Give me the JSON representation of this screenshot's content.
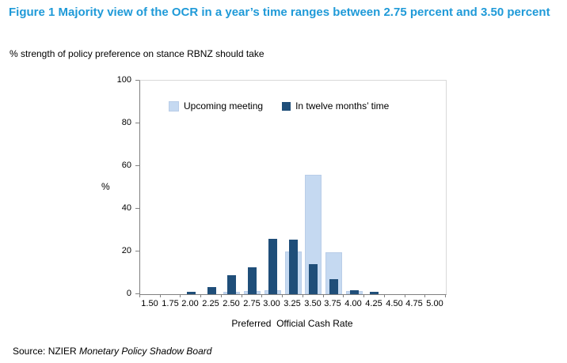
{
  "figure": {
    "source": {
      "prefix": "Source: NZIER ",
      "publication": "Monetary Policy Shadow Board"
    }
  },
  "colors": {
    "title_accent": "#1f9ad8",
    "upcoming_meeting_fill": "#c5d9f1",
    "upcoming_meeting_border": "#b9cde8",
    "twelve_months_fill": "#1f4e79",
    "axis_line": "#808080",
    "plot_border": "#d9d9d9",
    "text": "#000000"
  },
  "chart_data": {
    "type": "bar",
    "title": "Figure 1 Majority view of the OCR in a year’s time ranges between 2.75 percent and 3.50 percent",
    "subtitle": "% strength of policy preference on stance RBNZ should take",
    "categories": [
      "1.50",
      "1.75",
      "2.00",
      "2.25",
      "2.50",
      "2.75",
      "3.00",
      "3.25",
      "3.50",
      "3.75",
      "4.00",
      "4.25",
      "4.50",
      "4.75",
      "5.00"
    ],
    "series": [
      {
        "name": "Upcoming meeting",
        "color": "#c5d9f1",
        "values": [
          0,
          0,
          0,
          0,
          1,
          1.5,
          2,
          20,
          56,
          19.5,
          1.5,
          0,
          0,
          0,
          0
        ]
      },
      {
        "name": "In twelve months’ time",
        "color": "#1f4e79",
        "values": [
          0,
          0,
          1,
          3.5,
          9,
          12.5,
          26,
          25.5,
          14,
          7,
          2,
          1,
          0,
          0,
          0
        ]
      }
    ],
    "xlabel": "Preferred  Official Cash Rate",
    "ylabel": "%",
    "ylim": [
      0,
      100
    ],
    "yticks": [
      0,
      20,
      40,
      60,
      80,
      100
    ],
    "grid": false,
    "legend_position": "top-inside"
  }
}
